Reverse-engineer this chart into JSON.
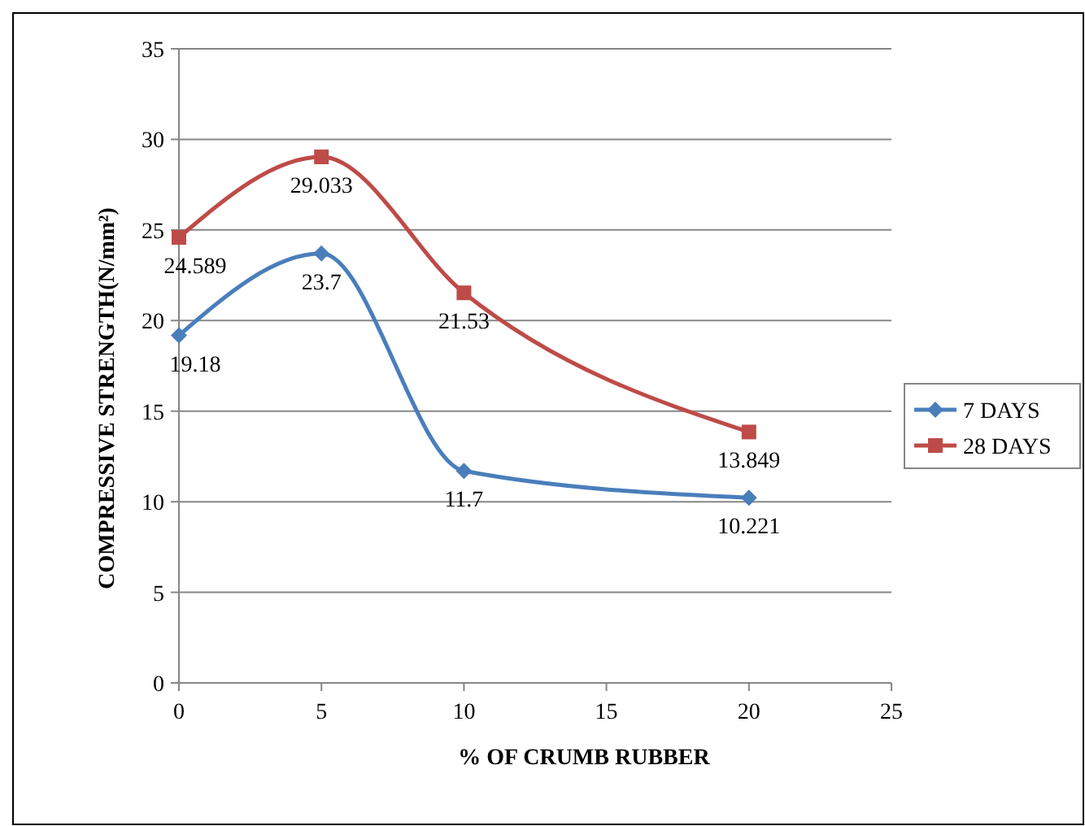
{
  "chart_data": {
    "type": "line",
    "xlabel": "% OF CRUMB RUBBER",
    "ylabel": "COMPRESSIVE STRENGTH(N/mm²)",
    "x": [
      0,
      5,
      10,
      20
    ],
    "series": [
      {
        "name": "7 DAYS",
        "color": "#4a7ebb",
        "marker": "diamond",
        "values": [
          19.18,
          23.7,
          11.7,
          10.221
        ]
      },
      {
        "name": "28 DAYS",
        "color": "#be4b48",
        "marker": "square",
        "values": [
          24.589,
          29.033,
          21.53,
          13.849
        ]
      }
    ],
    "xlim": [
      0,
      25
    ],
    "xticks": [
      0,
      5,
      10,
      15,
      20,
      25
    ],
    "ylim": [
      0,
      35
    ],
    "yticks": [
      0,
      5,
      10,
      15,
      20,
      25,
      30,
      35
    ],
    "grid": "y",
    "legend": "right",
    "data_labels": true,
    "line_style": "solid"
  }
}
